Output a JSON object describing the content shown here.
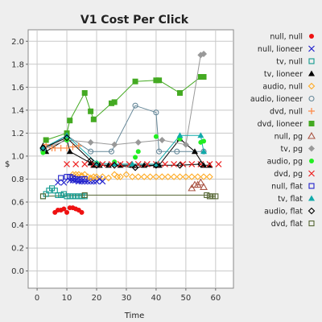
{
  "chart_data": {
    "type": "scatter",
    "title": "V1 Cost Per Click",
    "xlabel": "Time",
    "ylabel": "$",
    "xlim": [
      -3,
      66
    ],
    "ylim": [
      -0.15,
      2.1
    ],
    "xticks": [
      0,
      10,
      20,
      30,
      40,
      50,
      60
    ],
    "yticks": [
      0.0,
      0.2,
      0.4,
      0.6,
      0.8,
      1.0,
      1.2,
      1.4,
      1.6,
      1.8,
      2.0
    ],
    "grid": true,
    "legend_position": "right",
    "series": [
      {
        "name": "null, null",
        "color": "#ee1111",
        "marker": "dot",
        "line": false,
        "points": [
          [
            6,
            0.51
          ],
          [
            7,
            0.53
          ],
          [
            8,
            0.53
          ],
          [
            9,
            0.54
          ],
          [
            10,
            0.51
          ],
          [
            11,
            0.55
          ],
          [
            12,
            0.55
          ],
          [
            13,
            0.54
          ],
          [
            14,
            0.53
          ],
          [
            15,
            0.51
          ]
        ]
      },
      {
        "name": "null, lioneer",
        "color": "#2222cc",
        "marker": "x",
        "line": false,
        "points": [
          [
            7,
            0.77
          ],
          [
            9,
            0.77
          ],
          [
            11,
            0.79
          ],
          [
            12,
            0.79
          ],
          [
            13,
            0.79
          ],
          [
            14,
            0.78
          ],
          [
            15,
            0.78
          ],
          [
            16,
            0.78
          ],
          [
            17,
            0.78
          ],
          [
            18,
            0.78
          ],
          [
            19,
            0.78
          ],
          [
            20,
            0.78
          ],
          [
            21,
            0.8
          ],
          [
            22,
            0.78
          ]
        ]
      },
      {
        "name": "tv, null",
        "color": "#11998e",
        "marker": "square-open",
        "line": false,
        "points": [
          [
            2,
            0.65
          ],
          [
            3,
            0.67
          ],
          [
            4,
            0.7
          ],
          [
            5,
            0.72
          ],
          [
            6,
            0.7
          ],
          [
            7,
            0.66
          ],
          [
            8,
            0.66
          ],
          [
            9,
            0.67
          ],
          [
            10,
            0.65
          ],
          [
            11,
            0.65
          ],
          [
            12,
            0.65
          ],
          [
            13,
            0.65
          ],
          [
            14,
            0.65
          ],
          [
            15,
            0.65
          ],
          [
            16,
            0.65
          ]
        ]
      },
      {
        "name": "tv, lioneer",
        "color": "#000000",
        "marker": "triangle",
        "line": true,
        "points": [
          [
            2,
            1.09
          ],
          [
            3,
            1.04
          ],
          [
            10,
            1.15
          ],
          [
            11,
            1.04
          ],
          [
            18,
            0.94
          ],
          [
            19,
            0.92
          ],
          [
            21,
            0.92
          ],
          [
            24,
            0.92
          ],
          [
            28,
            0.92
          ],
          [
            32,
            0.92
          ],
          [
            36,
            0.92
          ],
          [
            40,
            0.92
          ],
          [
            41,
            0.92
          ],
          [
            48,
            1.15
          ],
          [
            53,
            1.04
          ],
          [
            56,
            0.92
          ],
          [
            58,
            0.92
          ]
        ]
      },
      {
        "name": "audio, null",
        "color": "#ffaa22",
        "marker": "diamond-open",
        "line": false,
        "points": [
          [
            12,
            0.84
          ],
          [
            13,
            0.84
          ],
          [
            14,
            0.84
          ],
          [
            15,
            0.83
          ],
          [
            16,
            0.84
          ],
          [
            17,
            0.82
          ],
          [
            18,
            0.81
          ],
          [
            19,
            0.82
          ],
          [
            20,
            0.82
          ],
          [
            22,
            0.82
          ],
          [
            24,
            0.81
          ],
          [
            26,
            0.84
          ],
          [
            27,
            0.82
          ],
          [
            28,
            0.82
          ],
          [
            30,
            0.84
          ],
          [
            32,
            0.82
          ],
          [
            34,
            0.82
          ],
          [
            36,
            0.82
          ],
          [
            38,
            0.82
          ],
          [
            40,
            0.82
          ],
          [
            42,
            0.82
          ],
          [
            44,
            0.82
          ],
          [
            46,
            0.82
          ],
          [
            48,
            0.82
          ],
          [
            50,
            0.82
          ],
          [
            52,
            0.82
          ],
          [
            54,
            0.82
          ],
          [
            56,
            0.82
          ],
          [
            58,
            0.82
          ]
        ]
      },
      {
        "name": "audio, lioneer",
        "color": "#668899",
        "marker": "circle-open",
        "line": true,
        "points": [
          [
            2,
            1.05
          ],
          [
            10,
            1.18
          ],
          [
            18,
            1.04
          ],
          [
            25,
            1.04
          ],
          [
            33,
            1.44
          ],
          [
            40,
            1.38
          ],
          [
            41,
            1.04
          ],
          [
            47,
            1.04
          ],
          [
            56,
            1.04
          ]
        ]
      },
      {
        "name": "dvd, null",
        "color": "#ff8844",
        "marker": "plus",
        "line": false,
        "points": [
          [
            3,
            1.1
          ],
          [
            5,
            1.07
          ],
          [
            6,
            1.07
          ],
          [
            8,
            1.07
          ],
          [
            10,
            1.07
          ],
          [
            12,
            1.08
          ],
          [
            14,
            1.09
          ]
        ]
      },
      {
        "name": "dvd, lioneer",
        "color": "#44aa22",
        "marker": "square",
        "line": true,
        "points": [
          [
            3,
            1.14
          ],
          [
            10,
            1.2
          ],
          [
            11,
            1.31
          ],
          [
            16,
            1.55
          ],
          [
            18,
            1.39
          ],
          [
            19,
            1.32
          ],
          [
            25,
            1.46
          ],
          [
            26,
            1.47
          ],
          [
            33,
            1.65
          ],
          [
            40,
            1.66
          ],
          [
            41,
            1.66
          ],
          [
            48,
            1.55
          ],
          [
            55,
            1.69
          ],
          [
            56,
            1.69
          ]
        ]
      },
      {
        "name": "null, pg",
        "color": "#aa5544",
        "marker": "triangle-open",
        "line": false,
        "points": [
          [
            52,
            0.72
          ],
          [
            53,
            0.75
          ],
          [
            54,
            0.75
          ],
          [
            55,
            0.77
          ],
          [
            56,
            0.73
          ]
        ]
      },
      {
        "name": "tv, pg",
        "color": "#999999",
        "marker": "diamond",
        "line": true,
        "points": [
          [
            2,
            1.06
          ],
          [
            10,
            1.14
          ],
          [
            18,
            1.12
          ],
          [
            26,
            1.1
          ],
          [
            34,
            1.12
          ],
          [
            42,
            1.14
          ],
          [
            50,
            1.1
          ],
          [
            55,
            1.88
          ],
          [
            56,
            1.89
          ]
        ]
      },
      {
        "name": "audio, pg",
        "color": "#22ee22",
        "marker": "dot",
        "line": false,
        "points": [
          [
            2,
            1.03
          ],
          [
            10,
            1.14
          ],
          [
            20,
            0.94
          ],
          [
            26,
            0.95
          ],
          [
            33,
            0.99
          ],
          [
            34,
            1.04
          ],
          [
            40,
            1.17
          ],
          [
            48,
            1.15
          ],
          [
            55,
            1.12
          ],
          [
            56,
            1.13
          ]
        ]
      },
      {
        "name": "dvd, pg",
        "color": "#ee2222",
        "marker": "x",
        "line": false,
        "points": [
          [
            10,
            0.93
          ],
          [
            13,
            0.93
          ],
          [
            16,
            0.93
          ],
          [
            19,
            0.93
          ],
          [
            22,
            0.93
          ],
          [
            25,
            0.93
          ],
          [
            28,
            0.93
          ],
          [
            31,
            0.93
          ],
          [
            34,
            0.93
          ],
          [
            37,
            0.93
          ],
          [
            40,
            0.93
          ],
          [
            43,
            0.93
          ],
          [
            46,
            0.93
          ],
          [
            49,
            0.93
          ],
          [
            52,
            0.93
          ],
          [
            55,
            0.93
          ],
          [
            58,
            0.93
          ],
          [
            61,
            0.93
          ]
        ]
      },
      {
        "name": "null, flat",
        "color": "#2222cc",
        "marker": "square-open",
        "line": false,
        "points": [
          [
            8,
            0.81
          ],
          [
            10,
            0.82
          ],
          [
            11,
            0.82
          ],
          [
            12,
            0.81
          ],
          [
            13,
            0.8
          ],
          [
            14,
            0.79
          ],
          [
            15,
            0.8
          ],
          [
            16,
            0.8
          ]
        ]
      },
      {
        "name": "tv, flat",
        "color": "#11aaaa",
        "marker": "triangle",
        "line": true,
        "points": [
          [
            2,
            1.07
          ],
          [
            10,
            1.18
          ],
          [
            20,
            0.94
          ],
          [
            26,
            0.93
          ],
          [
            32,
            0.93
          ],
          [
            40,
            0.93
          ],
          [
            48,
            1.18
          ],
          [
            55,
            1.18
          ],
          [
            56,
            1.04
          ]
        ]
      },
      {
        "name": "audio, flat",
        "color": "#000000",
        "marker": "diamond-open",
        "line": true,
        "points": [
          [
            2,
            1.07
          ],
          [
            10,
            1.16
          ],
          [
            18,
            0.96
          ],
          [
            20,
            0.92
          ],
          [
            26,
            0.92
          ],
          [
            33,
            0.9
          ],
          [
            40,
            0.92
          ],
          [
            48,
            0.92
          ],
          [
            55,
            0.93
          ]
        ]
      },
      {
        "name": "dvd, flat",
        "color": "#556633",
        "marker": "square-open",
        "line": true,
        "points": [
          [
            2,
            0.65
          ],
          [
            16,
            0.66
          ],
          [
            57,
            0.66
          ],
          [
            58,
            0.65
          ],
          [
            59,
            0.65
          ],
          [
            60,
            0.65
          ]
        ]
      }
    ]
  }
}
